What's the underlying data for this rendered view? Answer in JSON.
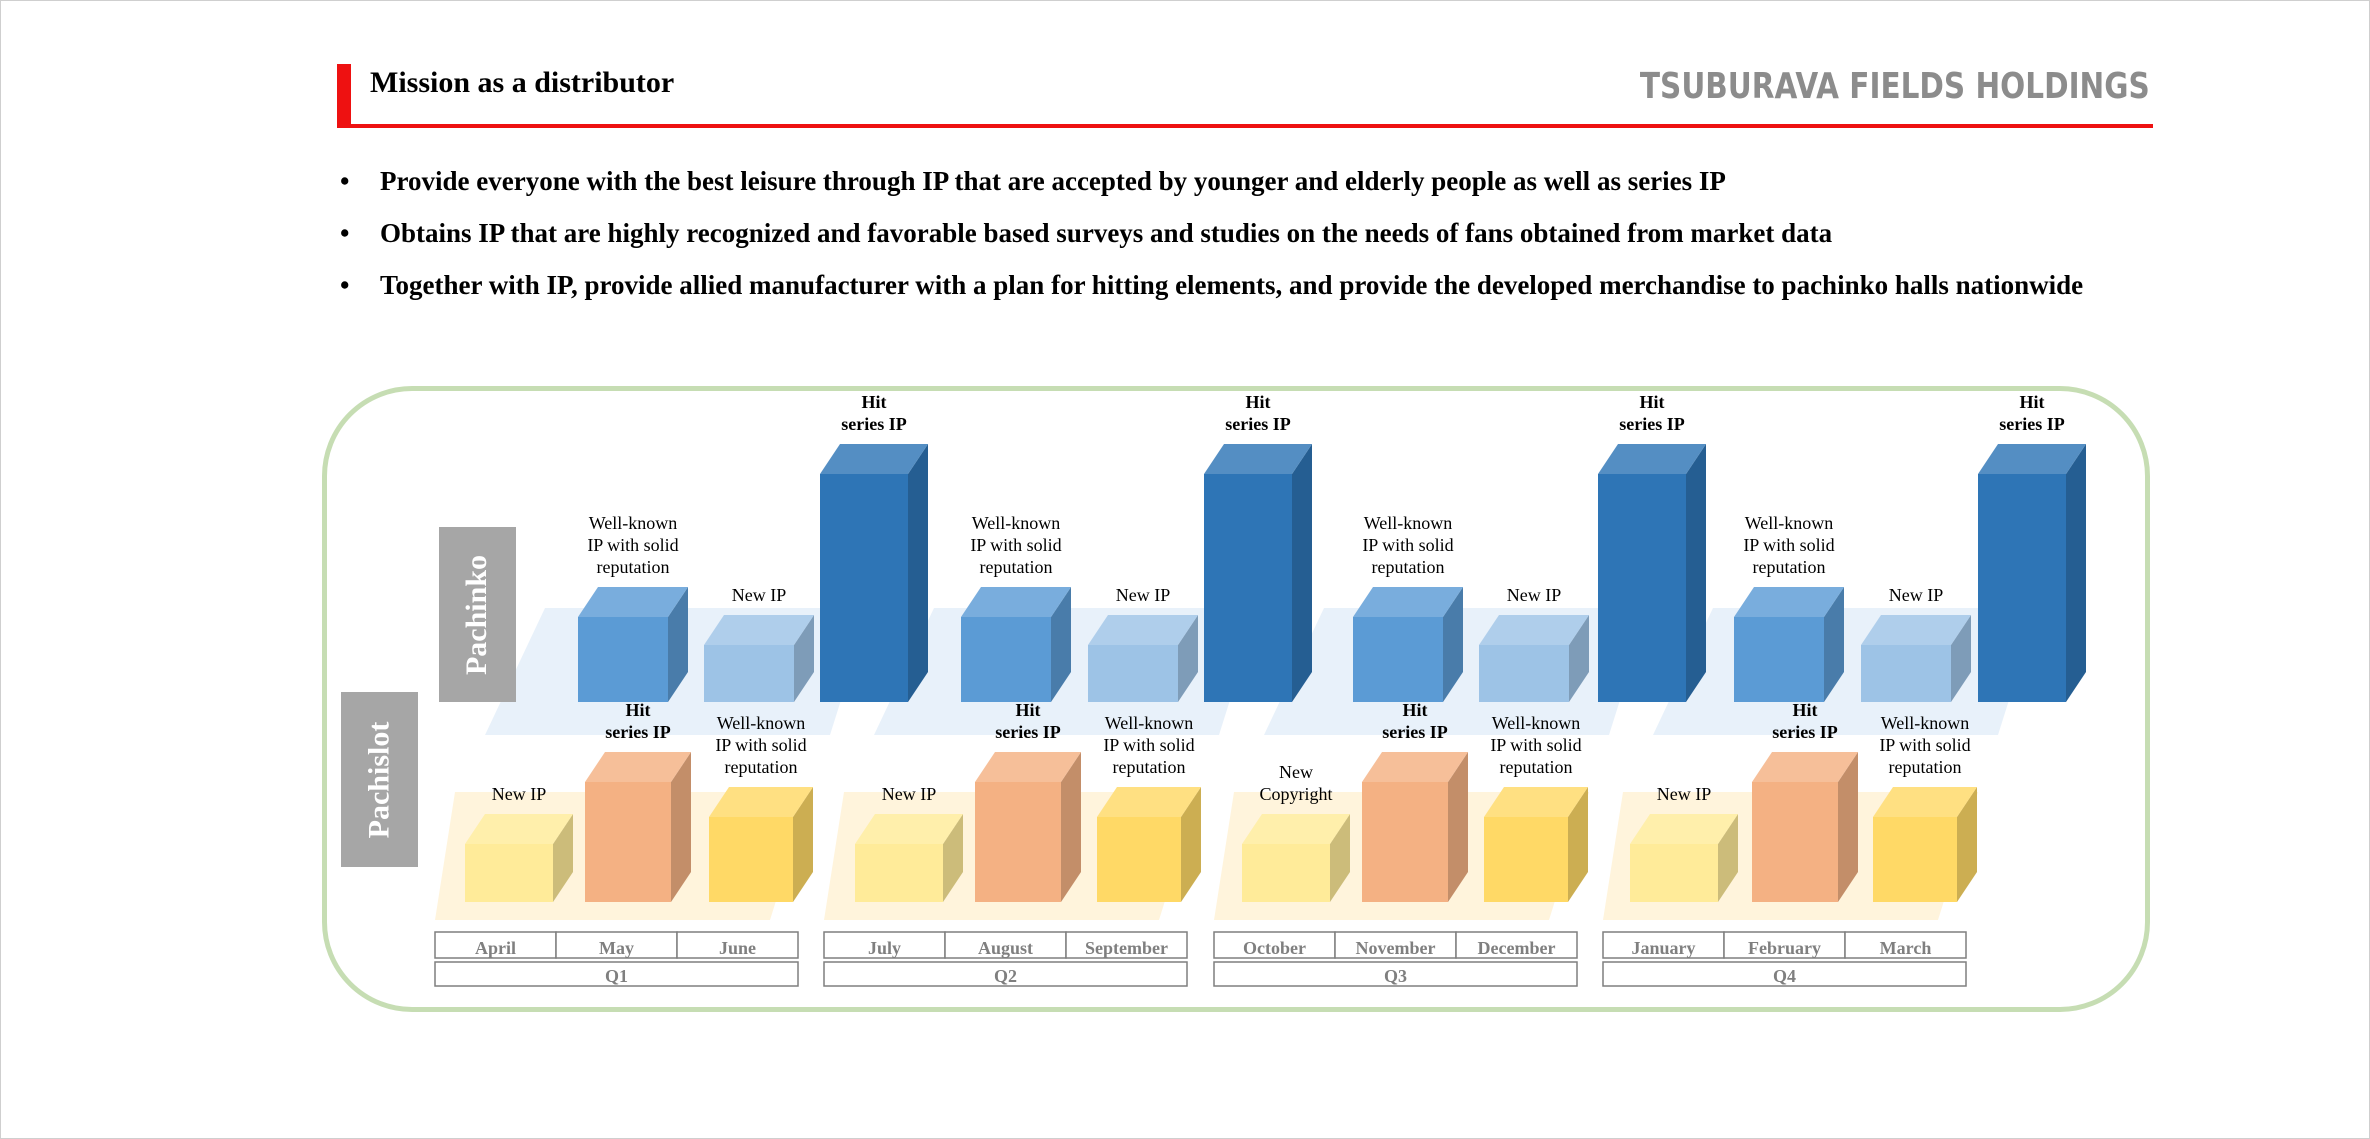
{
  "header": {
    "title": "Mission as a distributor",
    "company_logo": "TSUBURAVA FIELDS HOLDINGS",
    "accent_color": "#ee1111"
  },
  "bullets": [
    "Provide everyone with the best leisure through IP that are accepted by younger and elderly people as well as series IP",
    "Obtains IP that are highly recognized and favorable based surveys and studies on the needs of fans obtained from market data",
    "Together with IP, provide allied manufacturer with a plan for hitting elements, and provide the developed merchandise to pachinko halls nationwide"
  ],
  "bullet_symbol": "•",
  "diagram": {
    "row_labels": {
      "pachinko": "Pachinko",
      "pachislot": "Pachislot"
    },
    "colors": {
      "pachinko_wellknown": "#5b9bd5",
      "pachinko_new": "#9dc3e6",
      "pachinko_hit": "#2e75b6",
      "pachislot_new": "#ffeb99",
      "pachislot_hit": "#f4b183",
      "pachislot_wellknown": "#ffd966",
      "panel_border": "#c6ddb3"
    },
    "quarters": [
      {
        "label": "Q1",
        "months": [
          "April",
          "May",
          "June"
        ],
        "pachinko": [
          {
            "type": "wellknown",
            "label": [
              "Well-known",
              "IP with solid",
              "reputation"
            ]
          },
          {
            "type": "new",
            "label": [
              "New IP"
            ]
          },
          {
            "type": "hit",
            "label": [
              "Hit",
              "series IP"
            ]
          }
        ],
        "pachislot": [
          {
            "type": "new",
            "label": [
              "New IP"
            ]
          },
          {
            "type": "hit",
            "label": [
              "Hit",
              "series IP"
            ]
          },
          {
            "type": "wellknown",
            "label": [
              "Well-known",
              "IP with solid",
              "reputation"
            ]
          }
        ]
      },
      {
        "label": "Q2",
        "months": [
          "July",
          "August",
          "September"
        ],
        "pachinko": [
          {
            "type": "wellknown",
            "label": [
              "Well-known",
              "IP with solid",
              "reputation"
            ]
          },
          {
            "type": "new",
            "label": [
              "New IP"
            ]
          },
          {
            "type": "hit",
            "label": [
              "Hit",
              "series IP"
            ]
          }
        ],
        "pachislot": [
          {
            "type": "new",
            "label": [
              "New IP"
            ]
          },
          {
            "type": "hit",
            "label": [
              "Hit",
              "series IP"
            ]
          },
          {
            "type": "wellknown",
            "label": [
              "Well-known",
              "IP with solid",
              "reputation"
            ]
          }
        ]
      },
      {
        "label": "Q3",
        "months": [
          "October",
          "November",
          "December"
        ],
        "pachinko": [
          {
            "type": "wellknown",
            "label": [
              "Well-known",
              "IP with solid",
              "reputation"
            ]
          },
          {
            "type": "new",
            "label": [
              "New IP"
            ]
          },
          {
            "type": "hit",
            "label": [
              "Hit",
              "series IP"
            ]
          }
        ],
        "pachislot": [
          {
            "type": "new",
            "label": [
              "New",
              "Copyright"
            ]
          },
          {
            "type": "hit",
            "label": [
              "Hit",
              "series IP"
            ]
          },
          {
            "type": "wellknown",
            "label": [
              "Well-known",
              "IP with solid",
              "reputation"
            ]
          }
        ]
      },
      {
        "label": "Q4",
        "months": [
          "January",
          "February",
          "March"
        ],
        "pachinko": [
          {
            "type": "wellknown",
            "label": [
              "Well-known",
              "IP with solid",
              "reputation"
            ]
          },
          {
            "type": "new",
            "label": [
              "New IP"
            ]
          },
          {
            "type": "hit",
            "label": [
              "Hit",
              "series IP"
            ]
          }
        ],
        "pachislot": [
          {
            "type": "new",
            "label": [
              "New IP"
            ]
          },
          {
            "type": "hit",
            "label": [
              "Hit",
              "series IP"
            ]
          },
          {
            "type": "wellknown",
            "label": [
              "Well-known",
              "IP with solid",
              "reputation"
            ]
          }
        ]
      }
    ]
  }
}
